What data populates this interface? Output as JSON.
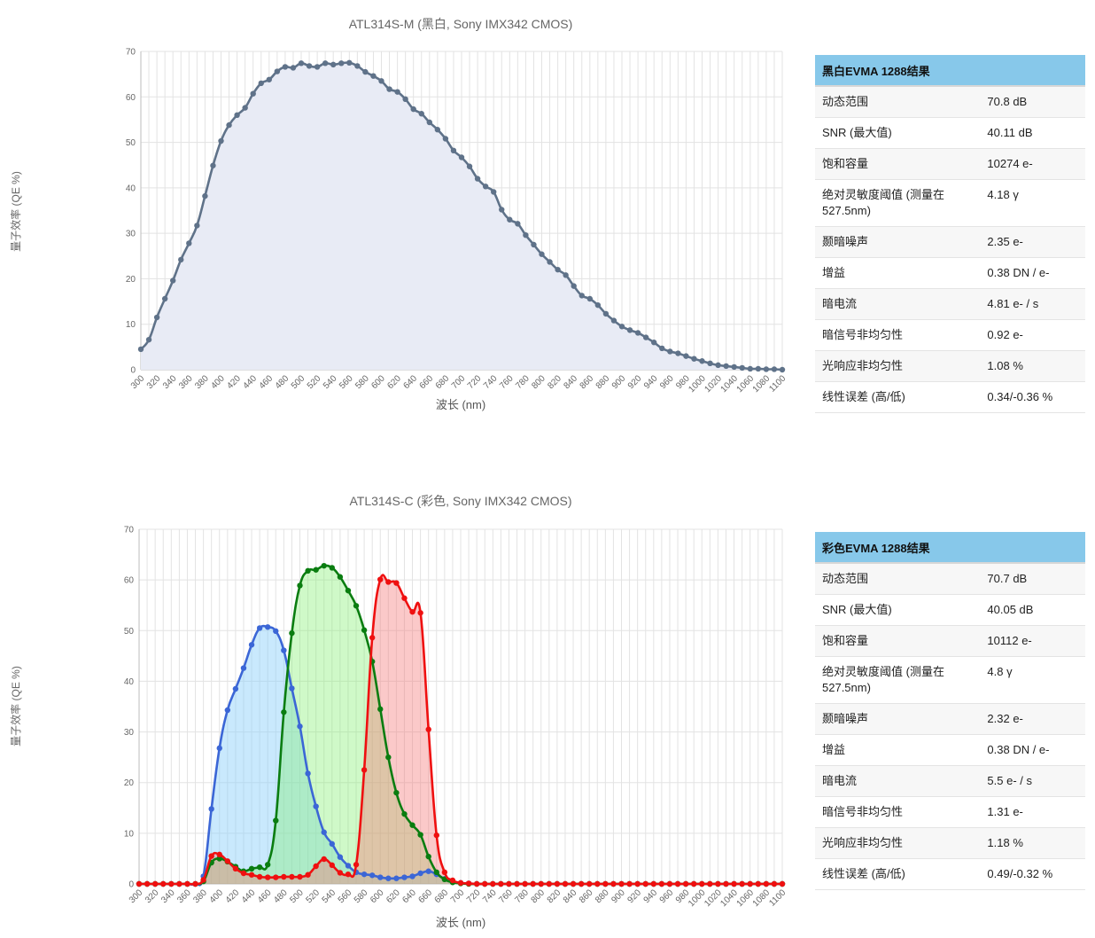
{
  "mono": {
    "title": "ATL314S-M (黑白, Sony IMX342 CMOS)",
    "table": {
      "header": "黑白EVMA 1288结果",
      "rows": [
        {
          "k": "动态范围",
          "v": "70.8 dB"
        },
        {
          "k": "SNR (最大值)",
          "v": "40.11 dB"
        },
        {
          "k": "饱和容量",
          "v": "10274 e-"
        },
        {
          "k": "绝对灵敏度阈值 (测量在527.5nm)",
          "v": "4.18 γ"
        },
        {
          "k": "颞暗噪声",
          "v": "2.35 e-"
        },
        {
          "k": "增益",
          "v": "0.38 DN / e-"
        },
        {
          "k": "暗电流",
          "v": "4.81 e- / s"
        },
        {
          "k": "暗信号非均匀性",
          "v": "0.92 e-"
        },
        {
          "k": "光响应非均匀性",
          "v": "1.08 %"
        },
        {
          "k": "线性误差 (高/低)",
          "v": "0.34/-0.36 %"
        }
      ]
    }
  },
  "color": {
    "title": "ATL314S-C (彩色, Sony IMX342 CMOS)",
    "table": {
      "header": "彩色EVMA 1288结果",
      "rows": [
        {
          "k": "动态范围",
          "v": "70.7 dB"
        },
        {
          "k": "SNR (最大值)",
          "v": "40.05 dB"
        },
        {
          "k": "饱和容量",
          "v": "10112 e-"
        },
        {
          "k": "绝对灵敏度阈值 (测量在527.5nm)",
          "v": "4.8 γ"
        },
        {
          "k": "颞暗噪声",
          "v": "2.32 e-"
        },
        {
          "k": "增益",
          "v": "0.38 DN / e-"
        },
        {
          "k": "暗电流",
          "v": "5.5 e- / s"
        },
        {
          "k": "暗信号非均匀性",
          "v": "1.31 e-"
        },
        {
          "k": "光响应非均匀性",
          "v": "1.18 %"
        },
        {
          "k": "线性误差 (高/低)",
          "v": "0.49/-0.32 %"
        }
      ]
    }
  },
  "chart_data": [
    {
      "type": "area",
      "title": "ATL314S-M (黑白, Sony IMX342 CMOS)",
      "xlabel": "波长 (nm)",
      "ylabel": "量子效率 (QE %)",
      "xlim": [
        300,
        1100
      ],
      "ylim": [
        0,
        70
      ],
      "xticks": [
        300,
        320,
        340,
        360,
        380,
        400,
        420,
        440,
        460,
        480,
        500,
        520,
        540,
        560,
        580,
        600,
        620,
        640,
        660,
        680,
        700,
        720,
        740,
        760,
        780,
        800,
        820,
        840,
        860,
        880,
        900,
        920,
        940,
        960,
        980,
        1000,
        1020,
        1040,
        1060,
        1080,
        1100
      ],
      "yticks": [
        0,
        10,
        20,
        30,
        40,
        50,
        60,
        70
      ],
      "grid": true,
      "series": [
        {
          "color": "#5f7289",
          "fill": "#e8ebf5",
          "x": [
            300,
            310,
            320,
            330,
            340,
            350,
            360,
            370,
            380,
            390,
            400,
            410,
            420,
            430,
            440,
            450,
            460,
            470,
            480,
            490,
            500,
            510,
            520,
            530,
            540,
            550,
            560,
            570,
            580,
            590,
            600,
            610,
            620,
            630,
            640,
            650,
            660,
            670,
            680,
            690,
            700,
            710,
            720,
            730,
            740,
            750,
            760,
            770,
            780,
            790,
            800,
            810,
            820,
            830,
            840,
            850,
            860,
            870,
            880,
            890,
            900,
            910,
            920,
            930,
            940,
            950,
            960,
            970,
            980,
            990,
            1000,
            1010,
            1020,
            1030,
            1040,
            1050,
            1060,
            1070,
            1080,
            1090,
            1100
          ],
          "values": [
            4.5,
            6.6,
            11.5,
            15.6,
            19.6,
            24.2,
            27.8,
            31.7,
            38.2,
            44.9,
            50.3,
            53.8,
            56.0,
            57.6,
            60.7,
            63.0,
            63.8,
            65.6,
            66.6,
            66.4,
            67.4,
            66.8,
            66.6,
            67.4,
            67.1,
            67.4,
            67.5,
            66.8,
            65.5,
            64.6,
            63.5,
            61.7,
            61.1,
            59.5,
            57.3,
            56.3,
            54.4,
            52.8,
            50.8,
            48.2,
            46.7,
            44.7,
            42.0,
            40.3,
            39.1,
            35.2,
            33.0,
            32.1,
            29.6,
            27.5,
            25.4,
            23.7,
            22.0,
            20.8,
            18.4,
            16.3,
            15.6,
            14.2,
            12.3,
            10.8,
            9.5,
            8.7,
            8.1,
            7.1,
            6.0,
            4.7,
            4.0,
            3.6,
            3.0,
            2.4,
            1.9,
            1.4,
            1.0,
            0.8,
            0.6,
            0.4,
            0.2,
            0.2,
            0.1,
            0.1,
            0.0
          ]
        }
      ]
    },
    {
      "type": "area",
      "title": "ATL314S-C (彩色, Sony IMX342 CMOS)",
      "xlabel": "波长 (nm)",
      "ylabel": "量子效率 (QE %)",
      "xlim": [
        300,
        1100
      ],
      "ylim": [
        0,
        70
      ],
      "xticks": [
        300,
        320,
        340,
        360,
        380,
        400,
        420,
        440,
        460,
        480,
        500,
        520,
        540,
        560,
        580,
        600,
        620,
        640,
        660,
        680,
        700,
        720,
        740,
        760,
        780,
        800,
        820,
        840,
        860,
        880,
        900,
        920,
        940,
        960,
        980,
        1000,
        1020,
        1040,
        1060,
        1080,
        1100
      ],
      "yticks": [
        0,
        10,
        20,
        30,
        40,
        50,
        60,
        70
      ],
      "grid": true,
      "series": [
        {
          "color": "#3b66d6",
          "fill": "rgba(135,206,250,0.45)",
          "x": [
            300,
            310,
            320,
            330,
            340,
            350,
            360,
            370,
            380,
            390,
            400,
            410,
            420,
            430,
            440,
            450,
            460,
            470,
            480,
            490,
            500,
            510,
            520,
            530,
            540,
            550,
            560,
            570,
            580,
            590,
            600,
            610,
            620,
            630,
            640,
            650,
            660,
            670,
            680,
            690,
            700,
            710,
            720,
            730,
            740,
            750,
            760,
            770,
            780,
            790,
            800,
            810,
            820,
            830,
            840,
            850,
            860,
            870,
            880,
            890,
            900,
            910,
            920,
            930,
            940,
            950,
            960,
            970,
            980,
            990,
            1000,
            1010,
            1020,
            1030,
            1040,
            1050,
            1060,
            1070,
            1080,
            1090,
            1100
          ],
          "values": [
            0,
            0,
            0,
            0,
            0,
            0,
            0,
            0,
            1.5,
            14.8,
            26.8,
            34.3,
            38.5,
            42.6,
            47.2,
            50.5,
            50.7,
            49.9,
            46.1,
            38.6,
            31.1,
            21.8,
            15.3,
            10.2,
            7.9,
            5.3,
            3.6,
            2.3,
            1.9,
            1.7,
            1.3,
            1.1,
            1.1,
            1.3,
            1.5,
            2.1,
            2.5,
            1.9,
            1.0,
            0.5,
            0.2,
            0.1,
            0,
            0,
            0,
            0,
            0,
            0,
            0,
            0,
            0,
            0,
            0,
            0,
            0,
            0,
            0,
            0,
            0,
            0,
            0,
            0,
            0,
            0,
            0,
            0,
            0,
            0,
            0,
            0,
            0,
            0,
            0,
            0,
            0,
            0,
            0,
            0,
            0,
            0,
            0
          ]
        },
        {
          "color": "#0a7d10",
          "fill": "rgba(128,240,110,0.38)",
          "x": [
            300,
            310,
            320,
            330,
            340,
            350,
            360,
            370,
            380,
            390,
            400,
            410,
            420,
            430,
            440,
            450,
            460,
            470,
            480,
            490,
            500,
            510,
            520,
            530,
            540,
            550,
            560,
            570,
            580,
            590,
            600,
            610,
            620,
            630,
            640,
            650,
            660,
            670,
            680,
            690,
            700,
            710,
            720,
            730,
            740,
            750,
            760,
            770,
            780,
            790,
            800,
            810,
            820,
            830,
            840,
            850,
            860,
            870,
            880,
            890,
            900,
            910,
            920,
            930,
            940,
            950,
            960,
            970,
            980,
            990,
            1000,
            1010,
            1020,
            1030,
            1040,
            1050,
            1060,
            1070,
            1080,
            1090,
            1100
          ],
          "values": [
            0,
            0,
            0,
            0,
            0,
            0,
            0,
            0,
            0.5,
            4.2,
            5.0,
            4.4,
            3.4,
            2.5,
            3.0,
            3.3,
            3.8,
            12.5,
            33.9,
            49.5,
            58.9,
            61.8,
            62.0,
            62.8,
            62.4,
            60.6,
            57.9,
            54.9,
            50.1,
            43.9,
            34.5,
            25.0,
            18.0,
            13.8,
            11.6,
            9.7,
            5.4,
            2.3,
            0.9,
            0.3,
            0.1,
            0,
            0,
            0,
            0,
            0,
            0,
            0,
            0,
            0,
            0,
            0,
            0,
            0,
            0,
            0,
            0,
            0,
            0,
            0,
            0,
            0,
            0,
            0,
            0,
            0,
            0,
            0,
            0,
            0,
            0,
            0,
            0,
            0,
            0,
            0,
            0,
            0,
            0,
            0,
            0
          ]
        },
        {
          "color": "#ef1010",
          "fill": "rgba(245,120,120,0.40)",
          "x": [
            300,
            310,
            320,
            330,
            340,
            350,
            360,
            370,
            380,
            390,
            400,
            410,
            420,
            430,
            440,
            450,
            460,
            470,
            480,
            490,
            500,
            510,
            520,
            530,
            540,
            550,
            560,
            570,
            580,
            590,
            600,
            610,
            620,
            630,
            640,
            650,
            660,
            670,
            680,
            690,
            700,
            710,
            720,
            730,
            740,
            750,
            760,
            770,
            780,
            790,
            800,
            810,
            820,
            830,
            840,
            850,
            860,
            870,
            880,
            890,
            900,
            910,
            920,
            930,
            940,
            950,
            960,
            970,
            980,
            990,
            1000,
            1010,
            1020,
            1030,
            1040,
            1050,
            1060,
            1070,
            1080,
            1090,
            1100
          ],
          "values": [
            0,
            0,
            0,
            0,
            0,
            0,
            0,
            0,
            0.8,
            5.5,
            5.8,
            4.5,
            3.0,
            2.1,
            1.8,
            1.4,
            1.3,
            1.3,
            1.4,
            1.4,
            1.4,
            1.8,
            3.5,
            4.9,
            3.7,
            2.2,
            1.9,
            3.8,
            22.5,
            48.6,
            60.1,
            59.6,
            59.4,
            56.4,
            53.7,
            53.5,
            30.5,
            9.6,
            2.3,
            0.7,
            0.2,
            0.1,
            0,
            0,
            0,
            0,
            0,
            0,
            0,
            0,
            0,
            0,
            0,
            0,
            0,
            0,
            0,
            0,
            0,
            0,
            0,
            0,
            0,
            0,
            0,
            0,
            0,
            0,
            0,
            0,
            0,
            0,
            0,
            0,
            0,
            0,
            0,
            0,
            0,
            0,
            0
          ]
        }
      ]
    }
  ]
}
